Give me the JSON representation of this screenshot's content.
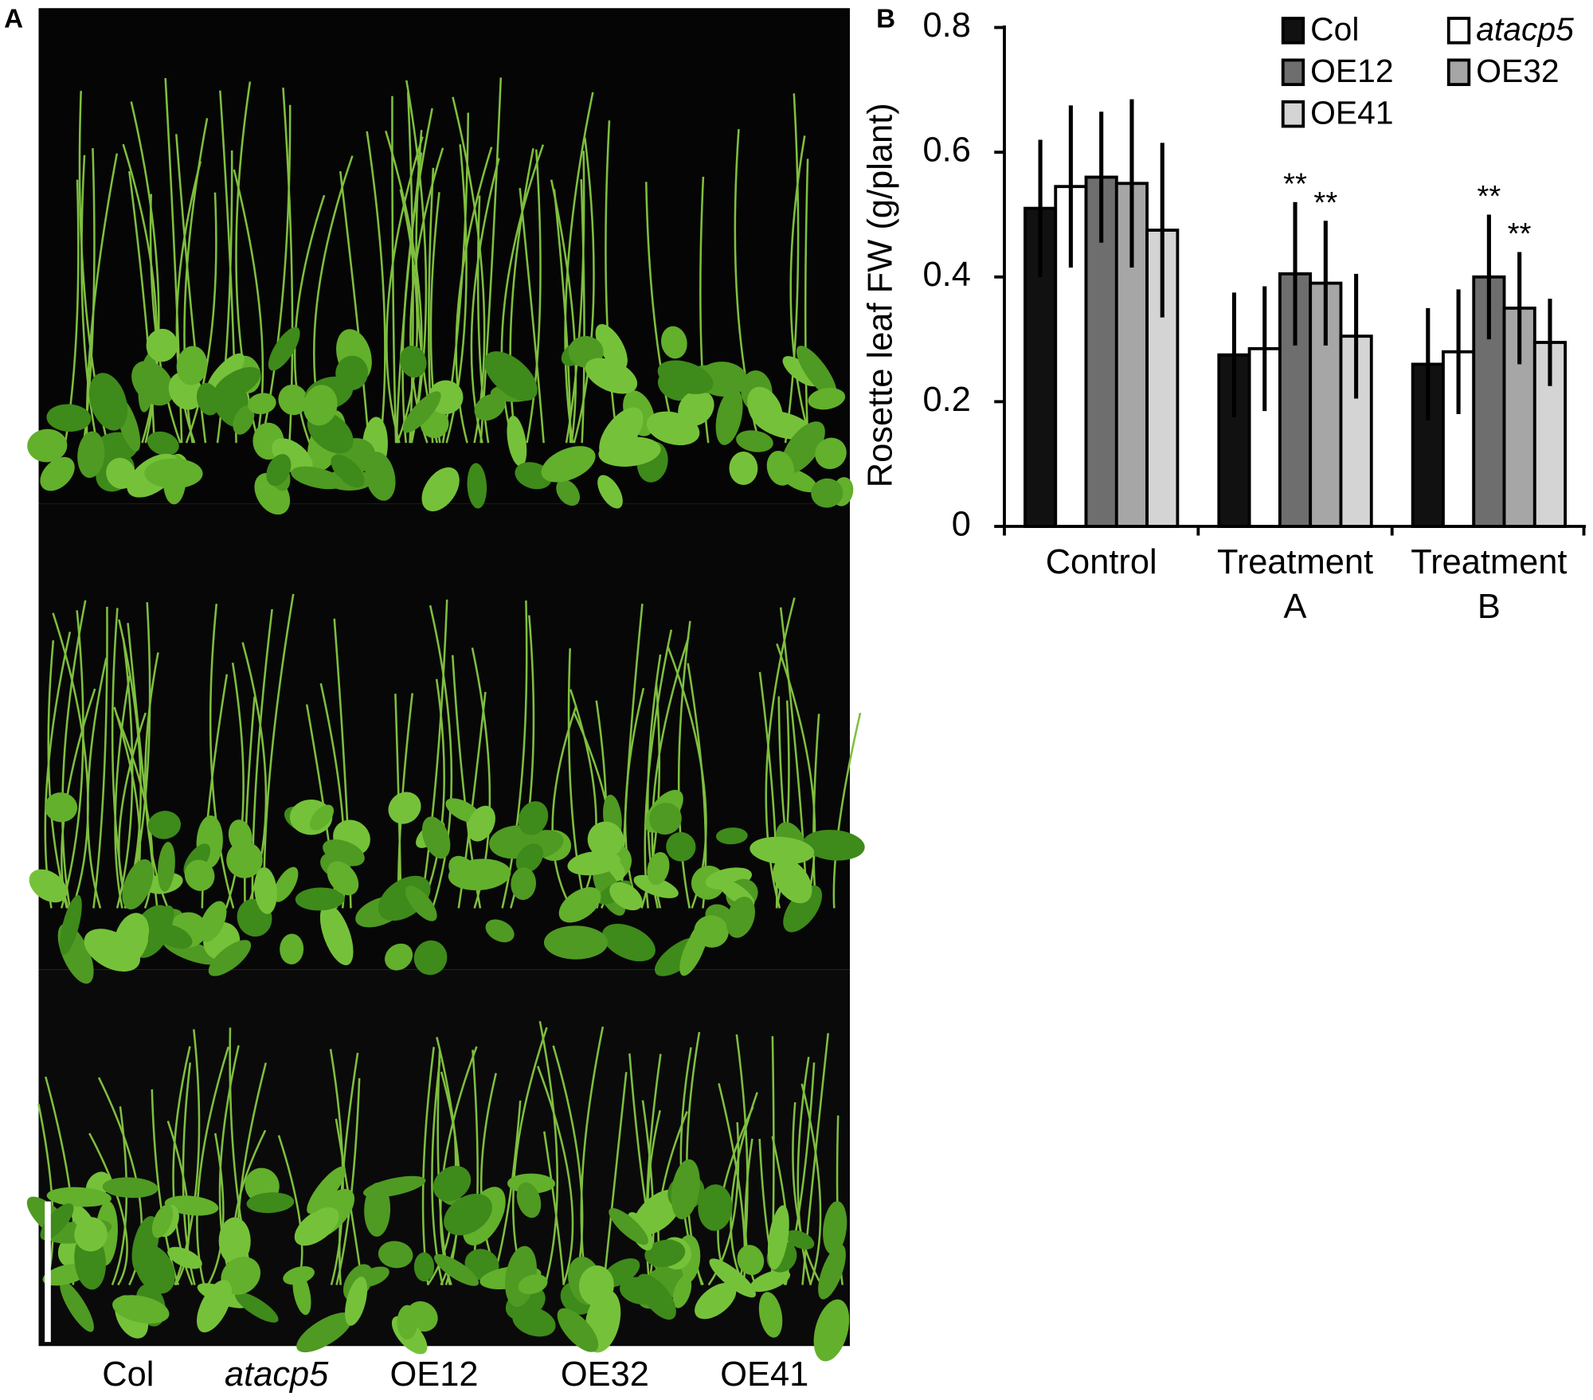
{
  "panels": {
    "a": "A",
    "b": "B"
  },
  "panel_a": {
    "genotypes": [
      {
        "name": "Col",
        "italic": false
      },
      {
        "name": "atacp5",
        "italic": true
      },
      {
        "name": "OE12",
        "italic": false
      },
      {
        "name": "OE32",
        "italic": false
      },
      {
        "name": "OE41",
        "italic": false
      }
    ]
  },
  "chart_data": {
    "type": "bar",
    "y_label": "Rosette leaf FW (g/plant)",
    "categories": [
      "Control",
      "Treatment A",
      "Treatment B"
    ],
    "ylim": [
      0,
      0.8
    ],
    "yticks": [
      0,
      0.2,
      0.4,
      0.6,
      0.8
    ],
    "grid": false,
    "legend": "top-right",
    "series": [
      {
        "name": "Col",
        "color": "#111111",
        "italic": false,
        "values": [
          0.51,
          0.275,
          0.26
        ],
        "errors": [
          0.11,
          0.1,
          0.09
        ]
      },
      {
        "name": "atacp5",
        "color": "#ffffff",
        "italic": true,
        "values": [
          0.545,
          0.285,
          0.28
        ],
        "errors": [
          0.13,
          0.1,
          0.1
        ]
      },
      {
        "name": "OE12",
        "color": "#6e6e6e",
        "italic": false,
        "values": [
          0.56,
          0.405,
          0.4
        ],
        "errors": [
          0.105,
          0.115,
          0.1
        ],
        "labels": [
          null,
          "**",
          "**"
        ]
      },
      {
        "name": "OE32",
        "color": "#a6a6a6",
        "italic": false,
        "values": [
          0.55,
          0.39,
          0.35
        ],
        "errors": [
          0.135,
          0.1,
          0.09
        ],
        "labels": [
          null,
          "**",
          "**"
        ]
      },
      {
        "name": "OE41",
        "color": "#d4d4d4",
        "italic": false,
        "values": [
          0.475,
          0.305,
          0.295
        ],
        "errors": [
          0.14,
          0.1,
          0.07
        ]
      }
    ]
  }
}
